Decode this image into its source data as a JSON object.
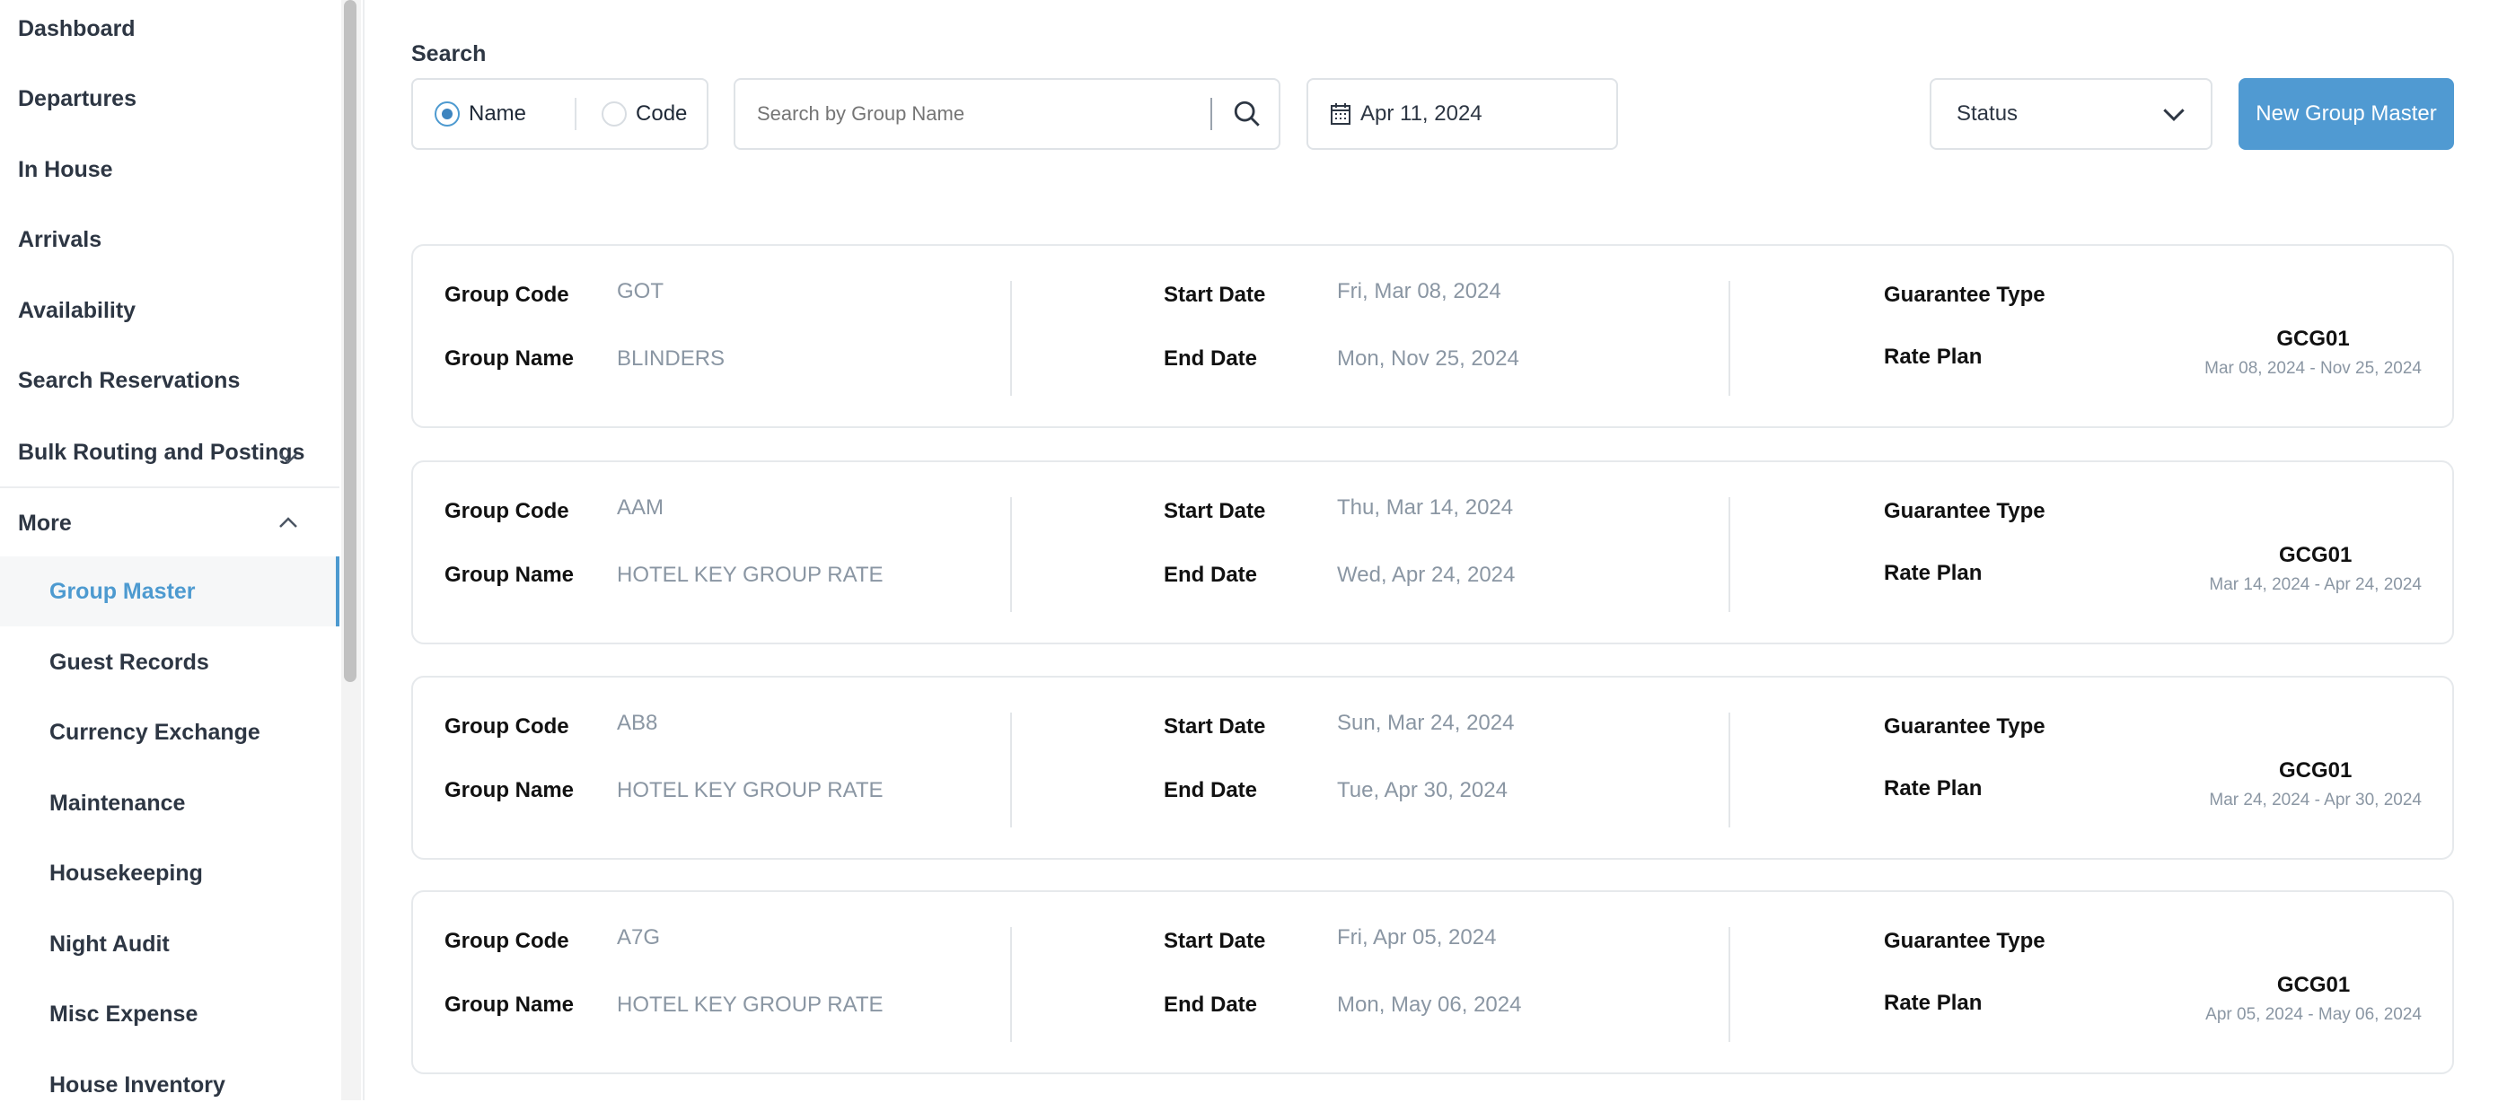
{
  "sidebar": {
    "items": [
      {
        "label": "Dashboard"
      },
      {
        "label": "Departures"
      },
      {
        "label": "In House"
      },
      {
        "label": "Arrivals"
      },
      {
        "label": "Availability"
      },
      {
        "label": "Search Reservations"
      },
      {
        "label": "Bulk Routing and Postings",
        "icon": "chevron-down-icon"
      },
      {
        "label": "More",
        "icon": "chevron-up-icon"
      }
    ],
    "sub_items": [
      {
        "label": "Group Master",
        "active": true
      },
      {
        "label": "Guest Records"
      },
      {
        "label": "Currency Exchange"
      },
      {
        "label": "Maintenance"
      },
      {
        "label": "Housekeeping"
      },
      {
        "label": "Night Audit"
      },
      {
        "label": "Misc Expense"
      },
      {
        "label": "House Inventory"
      }
    ]
  },
  "search": {
    "label": "Search",
    "radio_name": "Name",
    "radio_code": "Code",
    "selected": "Name",
    "placeholder": "Search by Group Name",
    "value": "",
    "date": "Apr 11, 2024",
    "status": "Status",
    "new_button": "New Group Master"
  },
  "colors": {
    "accent": "#509ad2",
    "active_text": "#4d9ad0",
    "muted": "#8a96a3"
  },
  "labels": {
    "group_code": "Group Code",
    "group_name": "Group Name",
    "start_date": "Start Date",
    "end_date": "End Date",
    "guarantee_type": "Guarantee Type",
    "rate_plan": "Rate Plan"
  },
  "groups": [
    {
      "code": "GOT",
      "name": "BLINDERS",
      "start": "Fri, Mar 08, 2024",
      "end": "Mon, Nov 25, 2024",
      "guarantee": "",
      "rate_plan": "GCG01",
      "rate_range": "Mar 08, 2024 - Nov 25, 2024"
    },
    {
      "code": "AAM",
      "name": "HOTEL KEY GROUP RATE",
      "start": "Thu, Mar 14, 2024",
      "end": "Wed, Apr 24, 2024",
      "guarantee": "",
      "rate_plan": "GCG01",
      "rate_range": "Mar 14, 2024 - Apr 24, 2024"
    },
    {
      "code": "AB8",
      "name": "HOTEL KEY GROUP RATE",
      "start": "Sun, Mar 24, 2024",
      "end": "Tue, Apr 30, 2024",
      "guarantee": "",
      "rate_plan": "GCG01",
      "rate_range": "Mar 24, 2024 - Apr 30, 2024"
    },
    {
      "code": "A7G",
      "name": "HOTEL KEY GROUP RATE",
      "start": "Fri, Apr 05, 2024",
      "end": "Mon, May 06, 2024",
      "guarantee": "",
      "rate_plan": "GCG01",
      "rate_range": "Apr 05, 2024 - May 06, 2024"
    }
  ]
}
